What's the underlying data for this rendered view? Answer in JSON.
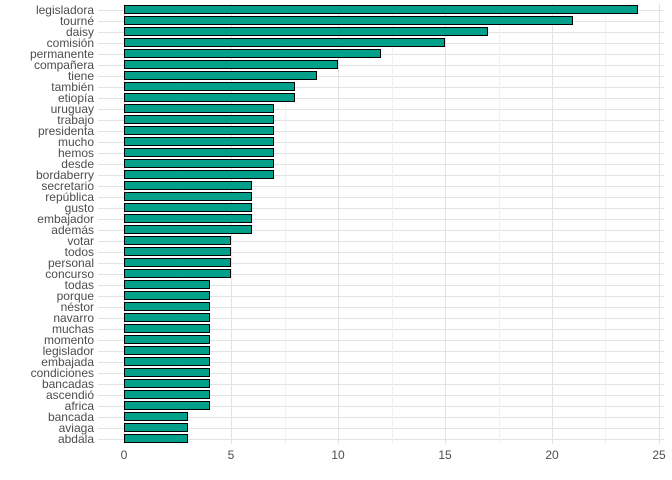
{
  "chart_data": {
    "type": "bar",
    "orientation": "horizontal",
    "title": "",
    "xlabel": "",
    "ylabel": "",
    "categories": [
      "legisladora",
      "tourné",
      "daisy",
      "comisión",
      "permanente",
      "compañera",
      "tiene",
      "también",
      "etiopía",
      "uruguay",
      "trabajo",
      "presidenta",
      "mucho",
      "hemos",
      "desde",
      "bordaberry",
      "secretario",
      "república",
      "gusto",
      "embajador",
      "además",
      "votar",
      "todos",
      "personal",
      "concurso",
      "todas",
      "porque",
      "néstor",
      "navarro",
      "muchas",
      "momento",
      "legislador",
      "embajada",
      "condiciones",
      "bancadas",
      "ascendió",
      "africa",
      "bancada",
      "aviaga",
      "abdala"
    ],
    "values": [
      24,
      21,
      17,
      15,
      12,
      10,
      9,
      8,
      8,
      7,
      7,
      7,
      7,
      7,
      7,
      7,
      6,
      6,
      6,
      6,
      6,
      5,
      5,
      5,
      5,
      4,
      4,
      4,
      4,
      4,
      4,
      4,
      4,
      4,
      4,
      4,
      4,
      3,
      3,
      3
    ],
    "xlim": [
      0,
      25.2
    ],
    "x_ticks": [
      0,
      5,
      10,
      15,
      20,
      25
    ],
    "x_tick_labels": [
      "0",
      "5",
      "10",
      "15",
      "20",
      "25"
    ],
    "x_minor_ticks": [
      2.5,
      7.5,
      12.5,
      17.5,
      22.5
    ],
    "grid": true,
    "legend": "none",
    "colors": {
      "bar_fill": "#00A08A",
      "bar_stroke": "#000000",
      "grid_major": "#E3E3E3",
      "grid_minor": "#F1F1F1",
      "axis_text": "#4D4D4D",
      "background": "#FFFFFF"
    }
  }
}
